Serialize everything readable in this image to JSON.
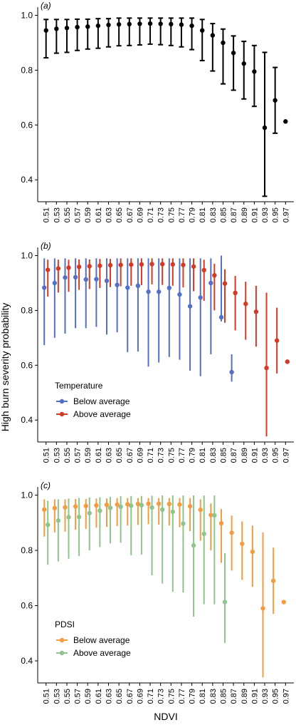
{
  "figure": {
    "ylabel": "High burn severity probability",
    "xlabel": "NDVI"
  },
  "chart_data": [
    {
      "type": "scatter",
      "panel_label": "(a)",
      "x": [
        "0.51",
        "0.53",
        "0.55",
        "0.57",
        "0.59",
        "0.61",
        "0.63",
        "0.65",
        "0.67",
        "0.69",
        "0.71",
        "0.73",
        "0.75",
        "0.77",
        "0.79",
        "0.81",
        "0.83",
        "0.85",
        "0.87",
        "0.89",
        "0.91",
        "0.93",
        "0.95",
        "0.97"
      ],
      "yticks": [
        0.4,
        0.6,
        0.8,
        1.0
      ],
      "yticklabels": [
        "0.4",
        "0.6",
        "0.8",
        "1.0"
      ],
      "ylim": [
        0.32,
        1.03
      ],
      "series": [
        {
          "color": "#000000",
          "values": [
            0.945,
            0.951,
            0.954,
            0.957,
            0.959,
            0.962,
            0.965,
            0.967,
            0.968,
            0.969,
            0.97,
            0.969,
            0.968,
            0.966,
            0.962,
            0.945,
            0.927,
            0.9,
            0.863,
            0.824,
            0.795,
            0.59,
            0.69,
            0.613
          ],
          "lower": [
            0.845,
            0.862,
            0.865,
            0.872,
            0.877,
            0.88,
            0.885,
            0.889,
            0.89,
            0.892,
            0.895,
            0.893,
            0.89,
            0.885,
            0.875,
            0.835,
            0.797,
            0.75,
            0.727,
            0.695,
            0.668,
            0.34,
            0.57,
            null
          ],
          "upper": [
            0.985,
            0.985,
            0.985,
            0.986,
            0.986,
            0.988,
            0.988,
            0.99,
            0.99,
            0.99,
            0.99,
            0.99,
            0.99,
            0.99,
            0.99,
            0.985,
            0.97,
            0.95,
            0.925,
            0.905,
            0.89,
            0.865,
            0.81,
            null
          ]
        }
      ]
    },
    {
      "type": "scatter",
      "panel_label": "(b)",
      "x": [
        "0.51",
        "0.53",
        "0.55",
        "0.57",
        "0.59",
        "0.61",
        "0.63",
        "0.65",
        "0.67",
        "0.69",
        "0.71",
        "0.73",
        "0.75",
        "0.77",
        "0.79",
        "0.81",
        "0.83",
        "0.85",
        "0.87",
        "0.89",
        "0.91",
        "0.93",
        "0.95",
        "0.97"
      ],
      "yticks": [
        0.4,
        0.6,
        0.8,
        1.0
      ],
      "yticklabels": [
        "0.4",
        "0.6",
        "0.8",
        "1.0"
      ],
      "ylim": [
        0.32,
        1.03
      ],
      "legend": {
        "title": "Temperature",
        "placement": "bottom-left"
      },
      "series": [
        {
          "name": "Below average",
          "color": "#5470c6",
          "values": [
            0.883,
            0.9,
            0.92,
            0.921,
            0.913,
            0.914,
            0.908,
            0.893,
            0.883,
            0.89,
            0.868,
            0.868,
            0.882,
            0.858,
            0.815,
            0.847,
            0.9,
            0.775,
            0.575,
            null,
            null,
            null,
            null,
            null
          ],
          "lower": [
            0.673,
            0.7,
            0.715,
            0.735,
            0.735,
            0.74,
            0.712,
            0.72,
            0.648,
            0.65,
            0.595,
            0.61,
            0.63,
            0.62,
            0.58,
            0.56,
            0.64,
            0.76,
            0.54,
            null,
            null,
            null,
            null,
            null
          ],
          "upper": [
            0.99,
            0.99,
            0.99,
            0.99,
            0.99,
            0.99,
            0.99,
            0.99,
            0.99,
            0.99,
            0.99,
            0.99,
            0.99,
            0.99,
            0.99,
            0.99,
            0.99,
            1.0,
            0.64,
            null,
            null,
            null,
            null,
            null
          ]
        },
        {
          "name": "Above average",
          "color": "#d33a25",
          "values": [
            0.948,
            0.953,
            0.956,
            0.959,
            0.961,
            0.963,
            0.965,
            0.966,
            0.967,
            0.968,
            0.969,
            0.969,
            0.968,
            0.966,
            0.96,
            0.947,
            0.928,
            0.898,
            0.864,
            0.824,
            0.795,
            0.59,
            0.69,
            0.613
          ],
          "lower": [
            0.85,
            0.865,
            0.868,
            0.875,
            0.878,
            0.882,
            0.885,
            0.888,
            0.89,
            0.892,
            0.895,
            0.893,
            0.89,
            0.884,
            0.87,
            0.835,
            0.8,
            0.755,
            0.727,
            0.693,
            0.668,
            0.34,
            0.57,
            null
          ],
          "upper": [
            0.985,
            0.985,
            0.985,
            0.986,
            0.986,
            0.988,
            0.988,
            0.99,
            0.99,
            0.99,
            0.99,
            0.99,
            0.99,
            0.99,
            0.99,
            0.985,
            0.97,
            0.95,
            0.926,
            0.905,
            0.89,
            0.865,
            0.81,
            null
          ]
        }
      ]
    },
    {
      "type": "scatter",
      "panel_label": "(c)",
      "x": [
        "0.51",
        "0.53",
        "0.55",
        "0.57",
        "0.59",
        "0.61",
        "0.63",
        "0.65",
        "0.67",
        "0.69",
        "0.71",
        "0.73",
        "0.75",
        "0.77",
        "0.79",
        "0.81",
        "0.83",
        "0.85",
        "0.87",
        "0.89",
        "0.91",
        "0.93",
        "0.95",
        "0.97"
      ],
      "yticks": [
        0.4,
        0.6,
        0.8,
        1.0
      ],
      "yticklabels": [
        "0.4",
        "0.6",
        "0.8",
        "1.0"
      ],
      "ylim": [
        0.32,
        1.03
      ],
      "legend": {
        "title": "PDSI",
        "placement": "bottom-left"
      },
      "series": [
        {
          "name": "Below average",
          "color": "#f39c42",
          "values": [
            0.948,
            0.953,
            0.956,
            0.959,
            0.961,
            0.963,
            0.965,
            0.966,
            0.967,
            0.968,
            0.969,
            0.969,
            0.968,
            0.966,
            0.96,
            0.947,
            0.928,
            0.898,
            0.864,
            0.824,
            0.795,
            0.59,
            0.69,
            0.613
          ],
          "lower": [
            0.85,
            0.865,
            0.868,
            0.875,
            0.878,
            0.882,
            0.885,
            0.888,
            0.89,
            0.892,
            0.895,
            0.893,
            0.89,
            0.884,
            0.87,
            0.835,
            0.8,
            0.755,
            0.727,
            0.693,
            0.668,
            0.34,
            0.57,
            null
          ],
          "upper": [
            0.985,
            0.985,
            0.985,
            0.986,
            0.986,
            0.988,
            0.988,
            0.99,
            0.99,
            0.99,
            0.99,
            0.99,
            0.99,
            0.99,
            0.99,
            0.985,
            0.97,
            0.95,
            0.926,
            0.905,
            0.89,
            0.865,
            0.81,
            null
          ]
        },
        {
          "name": "Above average",
          "color": "#8fc48e",
          "values": [
            0.893,
            0.908,
            0.92,
            0.921,
            0.935,
            0.944,
            0.954,
            0.958,
            0.962,
            0.964,
            0.955,
            0.948,
            0.94,
            0.897,
            0.818,
            0.86,
            0.927,
            0.613,
            null,
            null,
            null,
            null,
            null,
            null
          ],
          "lower": [
            0.748,
            0.76,
            0.77,
            0.78,
            0.8,
            0.812,
            0.825,
            0.828,
            0.782,
            0.785,
            0.71,
            0.68,
            0.65,
            0.648,
            0.56,
            0.605,
            0.605,
            0.465,
            null,
            null,
            null,
            null,
            null,
            null
          ],
          "upper": [
            0.98,
            0.985,
            0.988,
            0.99,
            0.992,
            0.993,
            0.994,
            0.996,
            0.997,
            0.997,
            0.998,
            0.999,
            0.999,
            0.999,
            0.999,
            0.999,
            0.999,
            0.79,
            null,
            null,
            null,
            null,
            null,
            null
          ]
        }
      ]
    }
  ]
}
